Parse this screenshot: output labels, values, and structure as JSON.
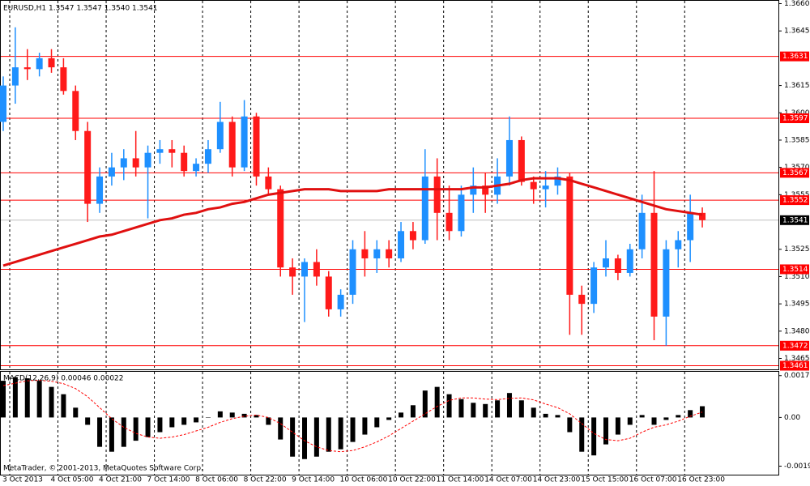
{
  "chart_data": [
    {
      "type": "candlestick",
      "title": "EURUSD,H1  1.3547 1.3547 1.3540 1.3541",
      "categories": [
        "3 Oct 2013",
        null,
        null,
        null,
        "4 Oct 05:00",
        null,
        null,
        null,
        "4 Oct 21:00",
        null,
        null,
        null,
        "7 Oct 14:00",
        null,
        null,
        null,
        "8 Oct 06:00",
        null,
        null,
        null,
        "8 Oct 22:00",
        null,
        null,
        null,
        "9 Oct 14:00",
        null,
        null,
        null,
        "10 Oct 06:00",
        null,
        null,
        null,
        "10 Oct 22:00",
        null,
        null,
        null,
        "11 Oct 14:00",
        null,
        null,
        null,
        "14 Oct 07:00",
        null,
        null,
        null,
        "14 Oct 23:00",
        null,
        null,
        null,
        "15 Oct 15:00",
        null,
        null,
        null,
        "16 Oct 07:00",
        null,
        null,
        null,
        "16 Oct 23:00",
        null,
        null
      ],
      "open": [
        1.3595,
        1.3615,
        1.3625,
        1.3624,
        1.363,
        1.3625,
        1.3612,
        1.359,
        1.355,
        1.3565,
        1.357,
        1.3575,
        1.357,
        1.3578,
        1.358,
        1.3578,
        1.3568,
        1.3572,
        1.358,
        1.3595,
        1.357,
        1.3598,
        1.3565,
        1.3558,
        1.3515,
        1.351,
        1.3518,
        1.351,
        1.3492,
        1.35,
        1.3525,
        1.352,
        1.3525,
        1.352,
        1.3535,
        1.353,
        1.3565,
        1.3545,
        1.3535,
        1.3555,
        1.356,
        1.3555,
        1.3565,
        1.3585,
        1.3562,
        1.3558,
        1.356,
        1.3565,
        1.35,
        1.3495,
        1.3515,
        1.352,
        1.3512,
        1.3525,
        1.3545,
        1.3488,
        1.3525,
        1.353,
        1.3545
      ],
      "high": [
        1.362,
        1.3647,
        1.3635,
        1.3633,
        1.3635,
        1.363,
        1.3615,
        1.3595,
        1.357,
        1.3578,
        1.358,
        1.359,
        1.3582,
        1.3585,
        1.3585,
        1.3582,
        1.3575,
        1.3585,
        1.3606,
        1.3598,
        1.3607,
        1.36,
        1.357,
        1.356,
        1.352,
        1.352,
        1.3525,
        1.3513,
        1.3503,
        1.353,
        1.3535,
        1.353,
        1.353,
        1.354,
        1.354,
        1.358,
        1.3575,
        1.356,
        1.356,
        1.357,
        1.3567,
        1.3575,
        1.3598,
        1.3587,
        1.3565,
        1.3568,
        1.357,
        1.3567,
        1.3505,
        1.3518,
        1.353,
        1.3522,
        1.3528,
        1.3555,
        1.3568,
        1.353,
        1.3535,
        1.3555,
        1.3548
      ],
      "low": [
        1.359,
        1.3605,
        1.3618,
        1.362,
        1.3622,
        1.361,
        1.3585,
        1.354,
        1.3545,
        1.356,
        1.3563,
        1.3565,
        1.3542,
        1.3572,
        1.357,
        1.3565,
        1.3565,
        1.3567,
        1.3578,
        1.3565,
        1.3568,
        1.356,
        1.3555,
        1.351,
        1.35,
        1.3485,
        1.3505,
        1.3488,
        1.3488,
        1.3495,
        1.351,
        1.3512,
        1.3515,
        1.3518,
        1.3525,
        1.3528,
        1.353,
        1.353,
        1.3532,
        1.3545,
        1.3545,
        1.355,
        1.356,
        1.356,
        1.355,
        1.3548,
        1.3555,
        1.3478,
        1.3478,
        1.349,
        1.351,
        1.3508,
        1.351,
        1.352,
        1.3475,
        1.3472,
        1.3515,
        1.3518,
        1.3537
      ],
      "close": [
        1.3615,
        1.3625,
        1.3624,
        1.363,
        1.3625,
        1.3612,
        1.359,
        1.355,
        1.3565,
        1.357,
        1.3575,
        1.357,
        1.3578,
        1.358,
        1.3578,
        1.3568,
        1.3572,
        1.358,
        1.3595,
        1.357,
        1.3598,
        1.3565,
        1.3558,
        1.3515,
        1.351,
        1.3518,
        1.351,
        1.3492,
        1.35,
        1.3525,
        1.352,
        1.3525,
        1.352,
        1.3535,
        1.353,
        1.3565,
        1.3545,
        1.3535,
        1.3555,
        1.356,
        1.3555,
        1.3565,
        1.3585,
        1.3562,
        1.3558,
        1.356,
        1.3565,
        1.35,
        1.3495,
        1.3515,
        1.352,
        1.3512,
        1.3525,
        1.3545,
        1.3488,
        1.3525,
        1.353,
        1.3545,
        1.3541
      ],
      "up_color": "#1e90ff",
      "down_color": "#ff1a1a",
      "moving_average": {
        "color": "#e01010",
        "values": [
          1.3516,
          1.3518,
          1.352,
          1.3522,
          1.3524,
          1.3526,
          1.3528,
          1.353,
          1.3532,
          1.3533,
          1.3535,
          1.3537,
          1.3539,
          1.3541,
          1.3542,
          1.3544,
          1.3545,
          1.3547,
          1.3548,
          1.355,
          1.3551,
          1.3553,
          1.3555,
          1.3556,
          1.3557,
          1.3558,
          1.3558,
          1.3558,
          1.3557,
          1.3557,
          1.3557,
          1.3557,
          1.3558,
          1.3558,
          1.3558,
          1.3558,
          1.3558,
          1.3558,
          1.3558,
          1.3559,
          1.3559,
          1.356,
          1.3561,
          1.3563,
          1.3564,
          1.3564,
          1.3564,
          1.3563,
          1.3561,
          1.3559,
          1.3557,
          1.3555,
          1.3553,
          1.3551,
          1.3549,
          1.3547,
          1.3546,
          1.3545,
          1.3544
        ]
      },
      "levels": [
        1.3631,
        1.3597,
        1.3567,
        1.3552,
        1.3514,
        1.3472,
        1.3461
      ],
      "level_color": "#ff0000",
      "last_price": 1.3541,
      "ylim": [
        1.3459,
        1.3662
      ],
      "yticks": [
        {
          "value": 1.366,
          "label": "1.3660"
        },
        1.3645,
        1.3615,
        {
          "value": 1.36,
          "label": "1.3600"
        },
        1.3585,
        {
          "value": 1.357,
          "label": "1.3570"
        },
        1.3555,
        1.3525,
        {
          "value": 1.351,
          "label": "1.3510"
        },
        1.3495,
        {
          "value": 1.348,
          "label": "1.3480"
        },
        1.3465
      ],
      "grid": true
    },
    {
      "type": "macd",
      "title": "MACD(12,26,9) 0.00046 0.00022",
      "histogram": [
        0.0015,
        0.00165,
        0.0016,
        0.0015,
        0.00125,
        0.00095,
        0.0004,
        -0.0003,
        -0.0012,
        -0.0014,
        -0.0012,
        -0.00095,
        -0.0008,
        -0.0006,
        -0.0004,
        -0.0003,
        -0.0002,
        0.0,
        0.00025,
        0.0002,
        0.00015,
        0.0001,
        -0.0003,
        -0.0009,
        -0.0016,
        -0.0017,
        -0.0016,
        -0.0014,
        -0.0013,
        -0.001,
        -0.0007,
        -0.0004,
        -0.0001,
        0.0002,
        0.0005,
        0.0011,
        0.00125,
        0.00095,
        0.00075,
        0.0006,
        0.00055,
        0.0007,
        0.001,
        0.0007,
        0.0004,
        0.00015,
        0.0001,
        -0.0006,
        -0.0014,
        -0.00155,
        -0.0011,
        -0.0007,
        -0.0003,
        0.0001,
        -0.0003,
        -0.0001,
        0.0001,
        0.0003,
        0.00046
      ],
      "signal": [
        0.0013,
        0.0014,
        0.0015,
        0.00152,
        0.00148,
        0.00138,
        0.00118,
        0.00085,
        0.0004,
        -5e-05,
        -0.0004,
        -0.00065,
        -0.0008,
        -0.00085,
        -0.0008,
        -0.0007,
        -0.00055,
        -0.0004,
        -0.0002,
        -5e-05,
        5e-05,
        0.0001,
        0.0,
        -0.00025,
        -0.0006,
        -0.00095,
        -0.0012,
        -0.00135,
        -0.0014,
        -0.00135,
        -0.0012,
        -0.001,
        -0.00075,
        -0.00045,
        -0.00015,
        0.00015,
        0.00045,
        0.0007,
        0.0008,
        0.0008,
        0.00075,
        0.00073,
        0.00078,
        0.0008,
        0.00072,
        0.00055,
        0.0004,
        0.00015,
        -0.00025,
        -0.00065,
        -0.0009,
        -0.00095,
        -0.00085,
        -0.0006,
        -0.0004,
        -0.0003,
        -0.00015,
        5e-05,
        0.00022
      ],
      "histogram_color": "#000000",
      "signal_color": "#ff0000",
      "ylim": [
        -0.00237,
        0.0019
      ],
      "yticks": [
        0.00171,
        {
          "value": 0,
          "label": "0.00"
        },
        -0.00199
      ]
    }
  ],
  "watermark": "MetaTrader, © 2001-2013, MetaQuotes Software Corp."
}
